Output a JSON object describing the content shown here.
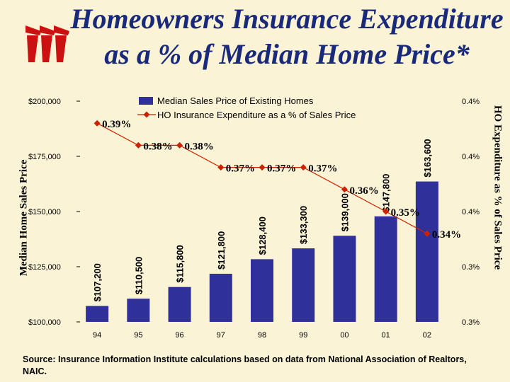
{
  "title_line1": "Homeowners Insurance Expenditure",
  "title_line2": "as a % of Median Home Price*",
  "source": "Source: Insurance Information Institute calculations based on data from National Association of Realtors, NAIC.",
  "colors": {
    "bar": "#30309a",
    "line": "#cc2200",
    "title": "#1a2a7a",
    "background": "#fbf3d5",
    "logo": "#cc1111"
  },
  "chart_data": {
    "type": "bar+line",
    "categories": [
      "94",
      "95",
      "96",
      "97",
      "98",
      "99",
      "00",
      "01",
      "02"
    ],
    "series": [
      {
        "name": "Median Sales Price of Existing Homes",
        "type": "bar",
        "axis": "left",
        "values": [
          107200,
          110500,
          115800,
          121800,
          128400,
          133300,
          139000,
          147800,
          163600
        ],
        "labels": [
          "$107,200",
          "$110,500",
          "$115,800",
          "$121,800",
          "$128,400",
          "$133,300",
          "$139,000",
          "$147,800",
          "$163,600"
        ]
      },
      {
        "name": "HO Insurance Expenditure as a % of Sales Price",
        "type": "line",
        "axis": "right",
        "values": [
          0.39,
          0.38,
          0.38,
          0.37,
          0.37,
          0.37,
          0.36,
          0.35,
          0.34
        ],
        "labels": [
          "0.39%",
          "0.38%",
          "0.38%",
          "0.37%",
          "0.37%",
          "0.37%",
          "0.36%",
          "0.35%",
          "0.34%"
        ]
      }
    ],
    "ylabel": "Median Home Sales Price",
    "ylabel_right": "HO Expenditure as % of Sales Price",
    "ylim": [
      100000,
      200000
    ],
    "yticks": [
      "$100,000",
      "$125,000",
      "$150,000",
      "$175,000",
      "$200,000"
    ],
    "ylim_right": [
      0.3,
      0.4
    ],
    "yticks_right": [
      "0.3%",
      "0.3%",
      "0.4%",
      "0.4%",
      "0.4%"
    ],
    "legend_position": "top"
  }
}
